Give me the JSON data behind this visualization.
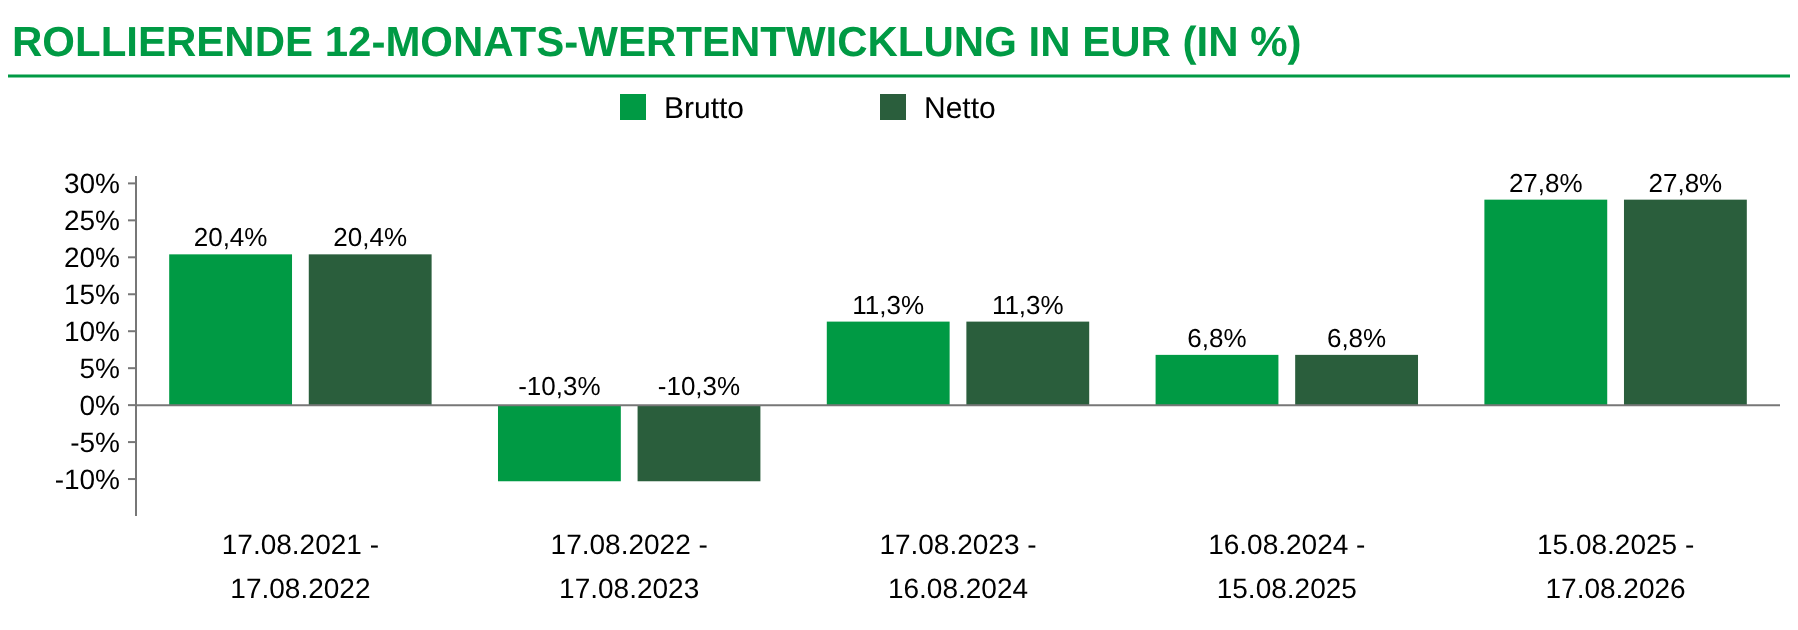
{
  "chart_data": {
    "type": "bar",
    "title": "ROLLIERENDE 12-MONATS-WERTENTWICKLUNG IN EUR (IN %)",
    "categories": [
      "17.08.2021 - 17.08.2022",
      "17.08.2022 - 17.08.2023",
      "17.08.2023 - 16.08.2024",
      "16.08.2024 - 15.08.2025",
      "15.08.2025 - 17.08.2026"
    ],
    "series": [
      {
        "name": "Brutto",
        "color": "#009a44",
        "values": [
          20.4,
          -10.3,
          11.3,
          6.8,
          27.8
        ],
        "value_labels": [
          "20,4%",
          "-10,3%",
          "11,3%",
          "6,8%",
          "27,8%"
        ]
      },
      {
        "name": "Netto",
        "color": "#2a5e3c",
        "values": [
          20.4,
          -10.3,
          11.3,
          6.8,
          27.8
        ],
        "value_labels": [
          "20,4%",
          "-10,3%",
          "11,3%",
          "6,8%",
          "27,8%"
        ]
      }
    ],
    "ylim": [
      -15,
      31
    ],
    "yticks": [
      {
        "value": -10,
        "label": "-10%"
      },
      {
        "value": -5,
        "label": "-5%"
      },
      {
        "value": 0,
        "label": "0%"
      },
      {
        "value": 5,
        "label": "5%"
      },
      {
        "value": 10,
        "label": "10%"
      },
      {
        "value": 15,
        "label": "15%"
      },
      {
        "value": 20,
        "label": "20%"
      },
      {
        "value": 25,
        "label": "25%"
      },
      {
        "value": 30,
        "label": "30%"
      }
    ],
    "legend": "top"
  }
}
